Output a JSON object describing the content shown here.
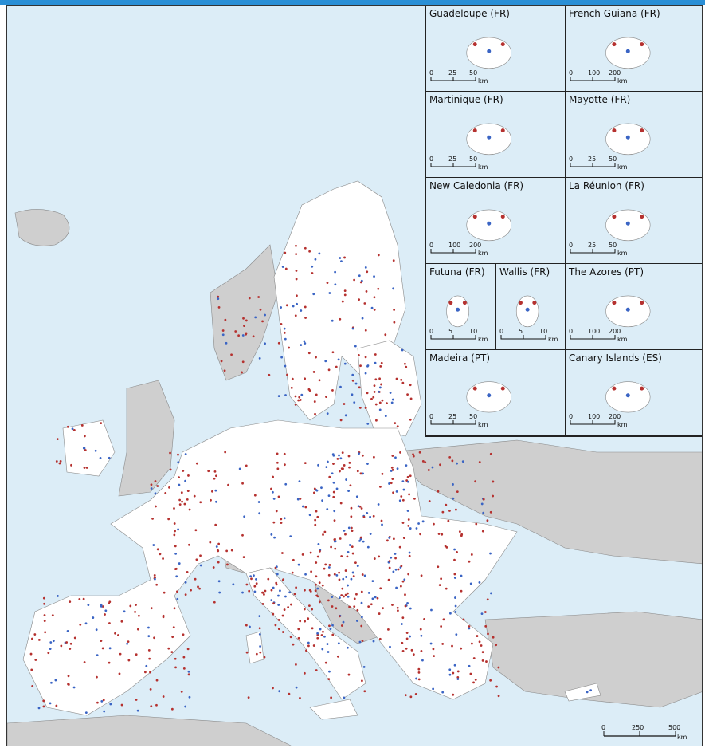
{
  "insets": [
    {
      "id": "guadeloupe",
      "title": "Guadeloupe (FR)",
      "scale": [
        "0",
        "25",
        "50",
        "km"
      ]
    },
    {
      "id": "french-guiana",
      "title": "French Guiana (FR)",
      "scale": [
        "0",
        "100",
        "200",
        "km"
      ]
    },
    {
      "id": "martinique",
      "title": "Martinique (FR)",
      "scale": [
        "0",
        "25",
        "50",
        "km"
      ]
    },
    {
      "id": "mayotte",
      "title": "Mayotte (FR)",
      "scale": [
        "0",
        "25",
        "50",
        "km"
      ]
    },
    {
      "id": "new-caledonia",
      "title": "New Caledonia (FR)",
      "scale": [
        "0",
        "100",
        "200",
        "km"
      ]
    },
    {
      "id": "la-reunion",
      "title": "La Réunion (FR)",
      "scale": [
        "0",
        "25",
        "50",
        "km"
      ]
    },
    {
      "id": "futuna",
      "title": "Futuna (FR)",
      "scale": [
        "0",
        "5",
        "10",
        "km"
      ]
    },
    {
      "id": "wallis",
      "title": "Wallis (FR)",
      "scale": [
        "0",
        "5",
        "10",
        "km"
      ]
    },
    {
      "id": "azores",
      "title": "The Azores (PT)",
      "scale": [
        "0",
        "100",
        "200",
        "km"
      ]
    },
    {
      "id": "madeira",
      "title": "Madeira (PT)",
      "scale": [
        "0",
        "25",
        "50",
        "km"
      ]
    },
    {
      "id": "canary",
      "title": "Canary Islands (ES)",
      "scale": [
        "0",
        "100",
        "200",
        "km"
      ]
    }
  ],
  "main_scale": [
    "0",
    "250",
    "500",
    "km"
  ],
  "colors": {
    "sea": "#dcedf7",
    "eu_land": "#ffffff",
    "non_eu_land": "#cfcfcf",
    "marker_red": "#b5312f",
    "marker_blue": "#3a64c4",
    "border": "#444444"
  }
}
